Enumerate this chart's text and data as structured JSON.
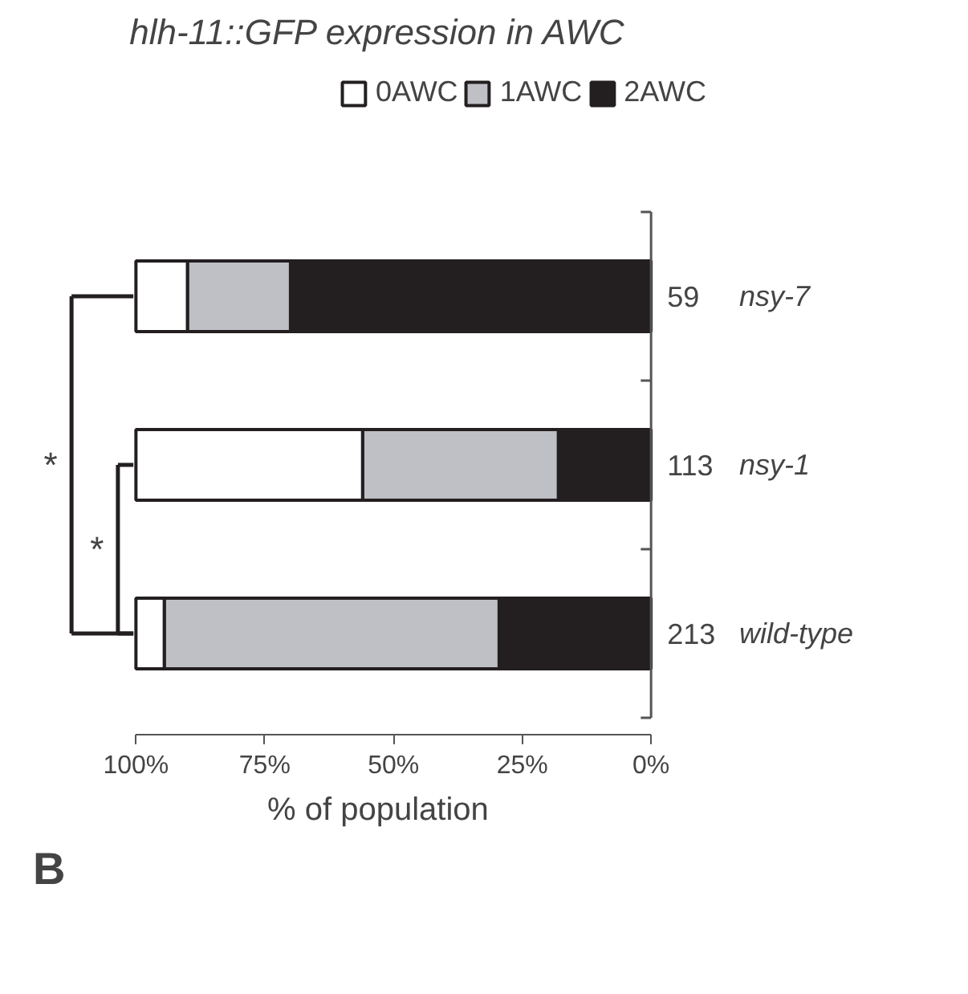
{
  "chart_data": {
    "type": "bar",
    "orientation": "horizontal",
    "stacked": true,
    "title": "hlh-11::GFP expression in AWC",
    "xlabel": "% of population",
    "categories": [
      "nsy-7",
      "nsy-1",
      "wild-type"
    ],
    "series": [
      {
        "name": "2AWC",
        "color": "#231f20",
        "values": [
          70,
          18,
          29.5
        ]
      },
      {
        "name": "1AWC",
        "color": "#bfc0c5",
        "values": [
          20,
          38,
          65
        ]
      },
      {
        "name": "0AWC",
        "color": "#ffffff",
        "values": [
          10,
          44,
          5.5
        ]
      }
    ],
    "xlim": [
      100,
      0
    ],
    "xticks": [
      {
        "value": 100,
        "label": "100%"
      },
      {
        "value": 75,
        "label": "75%"
      },
      {
        "value": 50,
        "label": "50%"
      },
      {
        "value": 25,
        "label": "25%"
      },
      {
        "value": 0,
        "label": "0%"
      }
    ],
    "legend": "top right",
    "grid": false,
    "annotations": [
      "59",
      "113",
      "213",
      "*",
      "*",
      "B"
    ]
  }
}
